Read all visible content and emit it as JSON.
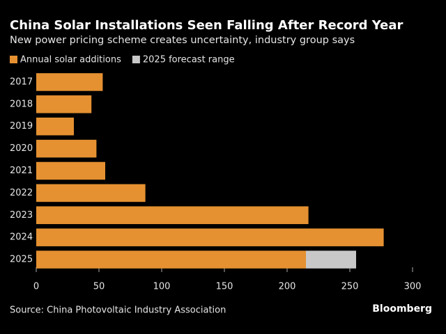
{
  "chart_data": {
    "type": "bar",
    "orientation": "horizontal",
    "stacked": true,
    "title": "China Solar Installations Seen Falling After Record Year",
    "subtitle": "New power pricing scheme creates uncertainty, industry group says",
    "categories": [
      "2017",
      "2018",
      "2019",
      "2020",
      "2021",
      "2022",
      "2023",
      "2024",
      "2025"
    ],
    "series": [
      {
        "name": "Annual solar additions",
        "color": "#e59131",
        "values": [
          53,
          44,
          30,
          48,
          55,
          87,
          217,
          277,
          215
        ]
      },
      {
        "name": "2025 forecast range",
        "color": "#c8c8c8",
        "values": [
          null,
          null,
          null,
          null,
          null,
          null,
          null,
          null,
          40
        ]
      }
    ],
    "xlim": [
      0,
      300
    ],
    "xticks": [
      0,
      50,
      100,
      150,
      200,
      250,
      300
    ],
    "source": "Source: China Photovoltaic Industry Association",
    "brand": "Bloomberg"
  }
}
